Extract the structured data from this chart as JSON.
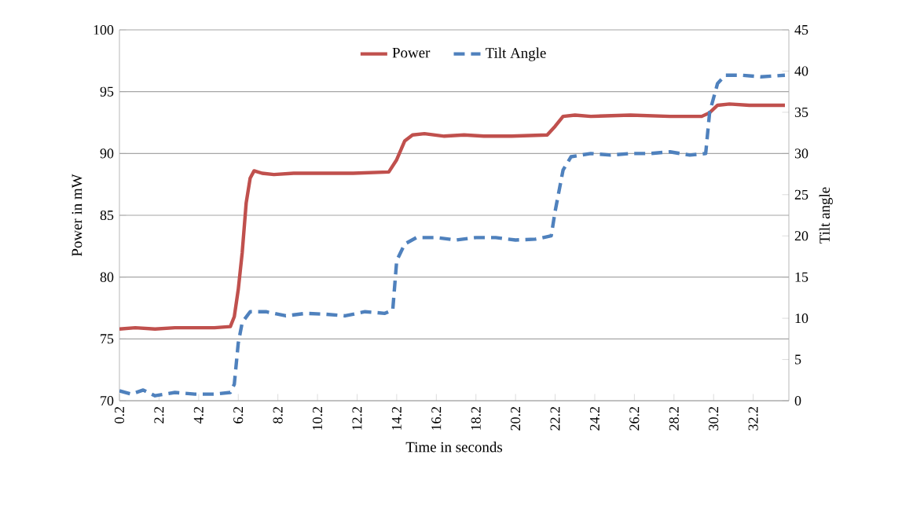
{
  "chart_data": {
    "type": "line",
    "xlabel": "Time in seconds",
    "ylabel": "Power in mW",
    "y2label": "Tilt angle",
    "xlim": [
      0.2,
      34
    ],
    "xticks": [
      0.2,
      2.2,
      4.2,
      6.2,
      8.2,
      10.2,
      12.2,
      14.2,
      16.2,
      18.2,
      20.2,
      22.2,
      24.2,
      26.2,
      28.2,
      30.2,
      32.2
    ],
    "ylim": [
      70,
      100
    ],
    "yticks": [
      70,
      75,
      80,
      85,
      90,
      95,
      100
    ],
    "y2lim": [
      0,
      45
    ],
    "y2ticks": [
      0,
      5,
      10,
      15,
      20,
      25,
      30,
      35,
      40,
      45
    ],
    "grid": "y",
    "legend": "top",
    "series": [
      {
        "name": "Power",
        "color": "#c0504d",
        "line_style": "solid",
        "x": [
          0.2,
          1.0,
          2.0,
          3.0,
          4.0,
          5.0,
          5.8,
          6.0,
          6.2,
          6.4,
          6.6,
          6.8,
          7.0,
          7.4,
          8.0,
          9.0,
          10.0,
          12.0,
          13.8,
          14.2,
          14.6,
          15.0,
          15.6,
          16.6,
          17.6,
          18.6,
          20.0,
          21.8,
          22.2,
          22.6,
          23.2,
          24.0,
          26.0,
          28.0,
          29.6,
          30.0,
          30.4,
          31.0,
          32.0,
          33.8
        ],
        "values": [
          75.8,
          75.9,
          75.8,
          75.9,
          75.9,
          75.9,
          76.0,
          76.8,
          79,
          82,
          86,
          88,
          88.6,
          88.4,
          88.3,
          88.4,
          88.4,
          88.4,
          88.5,
          89.5,
          91,
          91.5,
          91.6,
          91.4,
          91.5,
          91.4,
          91.4,
          91.5,
          92.2,
          93.0,
          93.1,
          93.0,
          93.1,
          93.0,
          93.0,
          93.3,
          93.9,
          94.0,
          93.9,
          93.9
        ]
      },
      {
        "name": "Tilt Angle",
        "color": "#4f81bd",
        "line_style": "dashed",
        "axis": "y2",
        "x": [
          0.2,
          0.8,
          1.4,
          2.0,
          3.0,
          4.0,
          5.0,
          5.8,
          6.0,
          6.2,
          6.4,
          6.8,
          7.6,
          8.6,
          9.6,
          10.6,
          11.6,
          12.6,
          13.6,
          14.0,
          14.2,
          14.6,
          15.2,
          16.2,
          17.2,
          18.2,
          19.2,
          20.2,
          21.2,
          22.0,
          22.2,
          22.6,
          23.0,
          24.0,
          25.0,
          26.0,
          27.0,
          28.0,
          29.0,
          29.8,
          30.0,
          30.4,
          30.8,
          31.6,
          32.6,
          33.8
        ],
        "values": [
          1.2,
          0.8,
          1.3,
          0.6,
          1.0,
          0.8,
          0.8,
          1.0,
          2,
          7,
          9.5,
          10.8,
          10.8,
          10.3,
          10.6,
          10.5,
          10.3,
          10.8,
          10.6,
          11,
          17,
          19,
          19.8,
          19.8,
          19.5,
          19.8,
          19.8,
          19.5,
          19.6,
          20,
          23,
          28,
          29.6,
          30,
          29.8,
          30,
          30,
          30.2,
          29.8,
          30,
          35,
          38.5,
          39.5,
          39.5,
          39.3,
          39.5
        ]
      }
    ]
  }
}
